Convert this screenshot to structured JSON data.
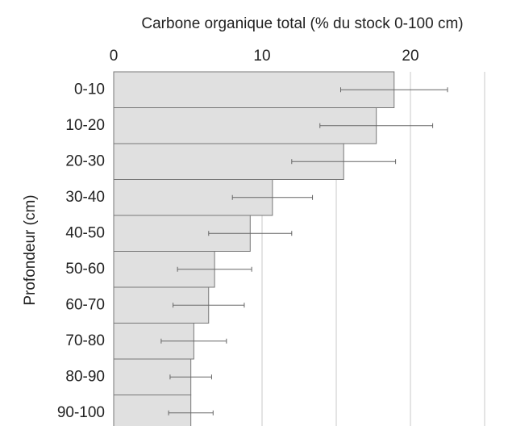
{
  "chart_data": {
    "type": "bar",
    "orientation": "horizontal",
    "title": "Carbone organique total (% du stock 0-100 cm)",
    "y_label": "Profondeur (cm)",
    "categories": [
      "0-10",
      "10-20",
      "20-30",
      "30-40",
      "40-50",
      "50-60",
      "60-70",
      "70-80",
      "80-90",
      "90-100"
    ],
    "values": [
      18.9,
      17.7,
      15.5,
      10.7,
      9.2,
      6.8,
      6.4,
      5.4,
      5.2,
      5.2
    ],
    "errors": [
      3.6,
      3.8,
      3.5,
      2.7,
      2.8,
      2.5,
      2.4,
      2.2,
      1.4,
      1.5
    ],
    "color": "#e0e0e0",
    "xlim": [
      0,
      25
    ],
    "xticks": [
      0,
      10,
      20
    ],
    "minor_xticks": [
      5,
      15,
      25
    ],
    "grid": true
  }
}
